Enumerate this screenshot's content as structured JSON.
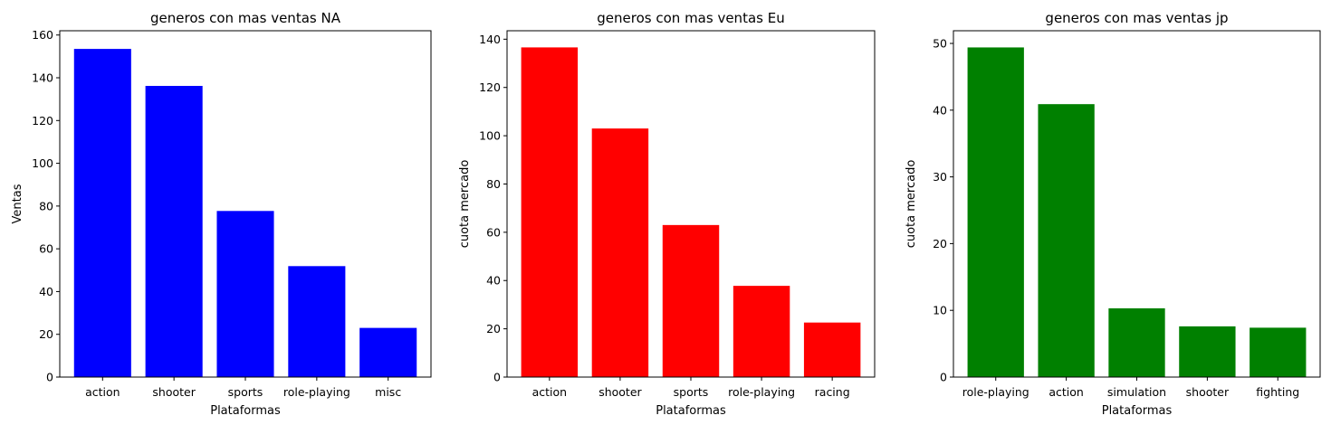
{
  "chart_data": [
    {
      "type": "bar",
      "title": "generos con mas ventas NA",
      "xlabel": "Plataformas",
      "ylabel": "Ventas",
      "categories": [
        "action",
        "shooter",
        "sports",
        "role-playing",
        "misc"
      ],
      "values": [
        153.5,
        136.2,
        77.7,
        51.9,
        23.0
      ],
      "ylim": [
        0,
        162
      ],
      "yticks": [
        0,
        20,
        40,
        60,
        80,
        100,
        120,
        140,
        160
      ],
      "color": "#0000ff",
      "grid": false
    },
    {
      "type": "bar",
      "title": "generos con mas ventas Eu",
      "xlabel": "Plataformas",
      "ylabel": "cuota mercado",
      "categories": [
        "action",
        "shooter",
        "sports",
        "role-playing",
        "racing"
      ],
      "values": [
        136.6,
        103.0,
        63.0,
        37.8,
        22.6
      ],
      "ylim": [
        0,
        143.5
      ],
      "yticks": [
        0,
        20,
        40,
        60,
        80,
        100,
        120,
        140
      ],
      "color": "#ff0000",
      "grid": false
    },
    {
      "type": "bar",
      "title": "generos con mas ventas jp",
      "xlabel": "Plataformas",
      "ylabel": "cuota mercado",
      "categories": [
        "role-playing",
        "action",
        "simulation",
        "shooter",
        "fighting"
      ],
      "values": [
        49.4,
        40.9,
        10.3,
        7.6,
        7.4
      ],
      "ylim": [
        0,
        51.9
      ],
      "yticks": [
        0,
        10,
        20,
        30,
        40,
        50
      ],
      "color": "#008000",
      "grid": false
    }
  ]
}
